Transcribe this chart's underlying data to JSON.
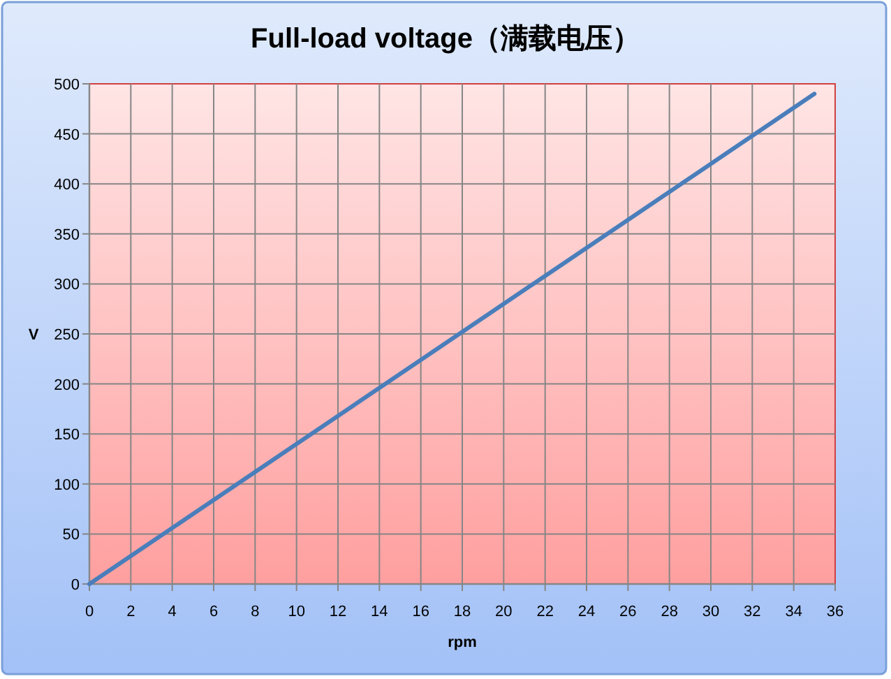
{
  "chart_data": {
    "type": "line",
    "title": "Full-load voltage（满载电压）",
    "xlabel": "rpm",
    "ylabel": "V",
    "x": [
      0,
      35
    ],
    "series": [
      {
        "color": "#4a7ebb",
        "values": [
          0,
          490
        ]
      }
    ],
    "xlim": [
      0,
      36
    ],
    "xticks": [
      0,
      2,
      4,
      6,
      8,
      10,
      12,
      14,
      16,
      18,
      20,
      22,
      24,
      26,
      28,
      30,
      32,
      34,
      36
    ],
    "ylim": [
      0,
      500
    ],
    "yticks": [
      0,
      50,
      100,
      150,
      200,
      250,
      300,
      350,
      400,
      450,
      500
    ],
    "grid": true
  }
}
